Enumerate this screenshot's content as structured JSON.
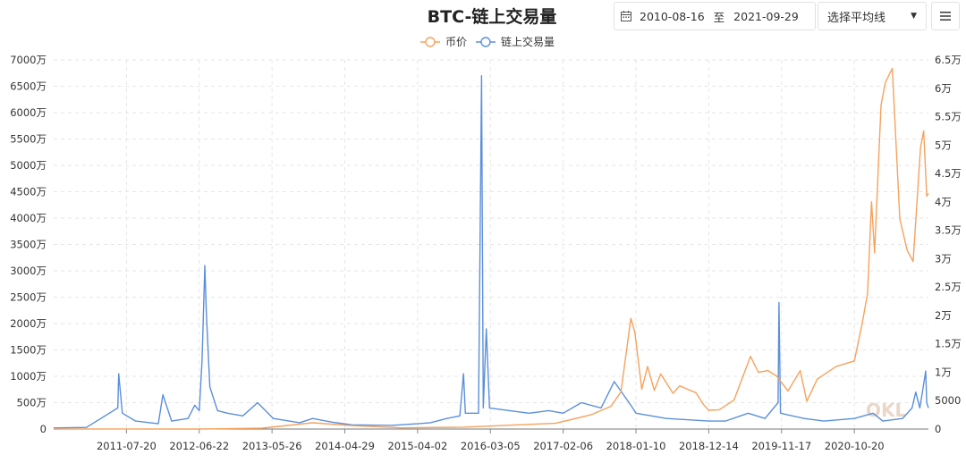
{
  "title": "BTC-链上交易量",
  "date_range": {
    "start": "2010-08-16",
    "separator": "至",
    "end": "2021-09-29",
    "icon": "calendar-icon"
  },
  "average_select": {
    "label": "选择平均线",
    "icon": "caret-down-icon"
  },
  "menu": {
    "icon": "hamburger-menu-icon"
  },
  "watermark": "OKL",
  "colors": {
    "price": "#F5A25D",
    "volume": "#5B8FDB",
    "grid": "#E6E6E6",
    "axis_text": "#333333"
  },
  "chart_data": {
    "type": "line",
    "title": "BTC-链上交易量",
    "legend": [
      "币价",
      "链上交易量"
    ],
    "legend_placement": "top-center",
    "grid": true,
    "x_ticks": [
      "2011-07-20",
      "2012-06-22",
      "2013-05-26",
      "2014-04-29",
      "2015-04-02",
      "2016-03-05",
      "2017-02-06",
      "2018-01-10",
      "2018-12-14",
      "2019-11-17",
      "2020-10-20"
    ],
    "x_range": [
      "2010-08-16",
      "2021-09-29"
    ],
    "y_left": {
      "ticks": [
        "0",
        "500万",
        "1000万",
        "1500万",
        "2000万",
        "2500万",
        "3000万",
        "3500万",
        "4000万",
        "4500万",
        "5000万",
        "5500万",
        "6000万",
        "6500万",
        "7000万"
      ],
      "range": [
        0,
        70000000
      ],
      "series": "链上交易量"
    },
    "y_right": {
      "ticks": [
        "0",
        "5000",
        "1万",
        "1.5万",
        "2万",
        "2.5万",
        "3万",
        "3.5万",
        "4万",
        "4.5万",
        "5万",
        "5.5万",
        "6万",
        "6.5万"
      ],
      "range": [
        0,
        65000
      ],
      "series": "币价"
    },
    "series": [
      {
        "name": "币价",
        "axis": "right",
        "points": [
          [
            "2010-08-16",
            0
          ],
          [
            "2011-06-10",
            20
          ],
          [
            "2012-06-22",
            6
          ],
          [
            "2013-04-10",
            150
          ],
          [
            "2013-11-30",
            1100
          ],
          [
            "2014-06-01",
            600
          ],
          [
            "2015-01-15",
            200
          ],
          [
            "2015-11-01",
            330
          ],
          [
            "2016-06-15",
            700
          ],
          [
            "2017-01-01",
            1000
          ],
          [
            "2017-06-15",
            2500
          ],
          [
            "2017-09-15",
            4000
          ],
          [
            "2017-11-01",
            6500
          ],
          [
            "2017-12-17",
            19500
          ],
          [
            "2018-01-05",
            17000
          ],
          [
            "2018-02-06",
            7000
          ],
          [
            "2018-03-05",
            11000
          ],
          [
            "2018-04-05",
            6800
          ],
          [
            "2018-05-05",
            9700
          ],
          [
            "2018-07-01",
            6300
          ],
          [
            "2018-08-01",
            7600
          ],
          [
            "2018-10-15",
            6400
          ],
          [
            "2018-11-20",
            4300
          ],
          [
            "2018-12-14",
            3300
          ],
          [
            "2019-02-01",
            3400
          ],
          [
            "2019-04-10",
            5100
          ],
          [
            "2019-06-26",
            12800
          ],
          [
            "2019-08-01",
            10000
          ],
          [
            "2019-09-15",
            10300
          ],
          [
            "2019-10-26",
            9300
          ],
          [
            "2019-12-17",
            6700
          ],
          [
            "2020-02-12",
            10300
          ],
          [
            "2020-03-13",
            4900
          ],
          [
            "2020-05-01",
            8800
          ],
          [
            "2020-07-27",
            11000
          ],
          [
            "2020-10-20",
            12000
          ],
          [
            "2020-11-25",
            18500
          ],
          [
            "2020-12-20",
            23800
          ],
          [
            "2021-01-08",
            40000
          ],
          [
            "2021-01-22",
            31000
          ],
          [
            "2021-02-21",
            57000
          ],
          [
            "2021-03-13",
            61000
          ],
          [
            "2021-04-14",
            63500
          ],
          [
            "2021-05-19",
            37000
          ],
          [
            "2021-06-22",
            31500
          ],
          [
            "2021-07-20",
            29500
          ],
          [
            "2021-08-23",
            49500
          ],
          [
            "2021-09-07",
            52500
          ],
          [
            "2021-09-21",
            41000
          ],
          [
            "2021-09-29",
            41500
          ]
        ]
      },
      {
        "name": "链上交易量",
        "axis": "left",
        "points": [
          [
            "2010-08-16",
            200000
          ],
          [
            "2011-01-15",
            300000
          ],
          [
            "2011-06-10",
            4000000
          ],
          [
            "2011-06-14",
            10500000
          ],
          [
            "2011-07-01",
            3000000
          ],
          [
            "2011-09-01",
            1500000
          ],
          [
            "2011-12-15",
            1000000
          ],
          [
            "2012-01-05",
            6500000
          ],
          [
            "2012-02-15",
            1500000
          ],
          [
            "2012-05-01",
            2000000
          ],
          [
            "2012-06-01",
            4500000
          ],
          [
            "2012-06-22",
            3500000
          ],
          [
            "2012-07-05",
            13000000
          ],
          [
            "2012-07-18",
            31000000
          ],
          [
            "2012-07-25",
            22000000
          ],
          [
            "2012-08-10",
            8000000
          ],
          [
            "2012-09-15",
            3500000
          ],
          [
            "2012-11-01",
            3000000
          ],
          [
            "2013-01-10",
            2500000
          ],
          [
            "2013-03-20",
            5000000
          ],
          [
            "2013-06-01",
            2000000
          ],
          [
            "2013-10-01",
            1200000
          ],
          [
            "2013-12-01",
            2000000
          ],
          [
            "2014-03-01",
            1300000
          ],
          [
            "2014-06-01",
            800000
          ],
          [
            "2014-12-01",
            700000
          ],
          [
            "2015-04-02",
            1000000
          ],
          [
            "2015-06-01",
            1200000
          ],
          [
            "2015-08-15",
            2000000
          ],
          [
            "2015-10-15",
            2500000
          ],
          [
            "2015-11-01",
            10500000
          ],
          [
            "2015-11-10",
            3000000
          ],
          [
            "2016-01-10",
            3000000
          ],
          [
            "2016-01-24",
            67000000
          ],
          [
            "2016-02-01",
            4000000
          ],
          [
            "2016-02-15",
            19000000
          ],
          [
            "2016-03-01",
            4000000
          ],
          [
            "2016-06-01",
            3500000
          ],
          [
            "2016-09-01",
            3000000
          ],
          [
            "2016-12-01",
            3500000
          ],
          [
            "2017-02-06",
            3000000
          ],
          [
            "2017-05-01",
            5000000
          ],
          [
            "2017-08-01",
            4000000
          ],
          [
            "2017-10-01",
            9000000
          ],
          [
            "2017-12-17",
            4500000
          ],
          [
            "2018-01-10",
            3000000
          ],
          [
            "2018-06-01",
            2000000
          ],
          [
            "2018-12-14",
            1500000
          ],
          [
            "2019-03-01",
            1500000
          ],
          [
            "2019-06-15",
            3000000
          ],
          [
            "2019-09-01",
            2000000
          ],
          [
            "2019-11-01",
            5000000
          ],
          [
            "2019-11-05",
            24000000
          ],
          [
            "2019-11-12",
            3000000
          ],
          [
            "2020-03-01",
            2000000
          ],
          [
            "2020-06-01",
            1500000
          ],
          [
            "2020-10-20",
            2000000
          ],
          [
            "2021-01-15",
            3000000
          ],
          [
            "2021-03-01",
            1500000
          ],
          [
            "2021-06-01",
            2000000
          ],
          [
            "2021-07-15",
            4000000
          ],
          [
            "2021-08-01",
            7000000
          ],
          [
            "2021-08-20",
            4000000
          ],
          [
            "2021-09-05",
            8000000
          ],
          [
            "2021-09-16",
            11000000
          ],
          [
            "2021-09-21",
            5000000
          ],
          [
            "2021-09-29",
            4000000
          ]
        ]
      }
    ]
  }
}
